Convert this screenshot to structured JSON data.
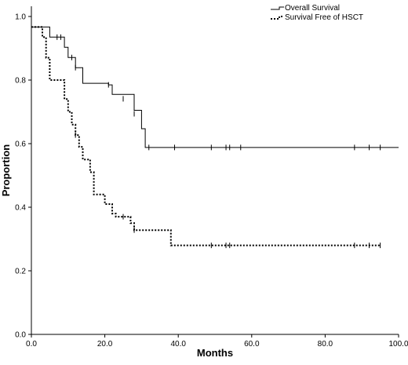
{
  "chart_data": {
    "type": "line",
    "subtype": "kaplan-meier step",
    "xlabel": "Months",
    "ylabel": "Proportion",
    "xlim": [
      0,
      100
    ],
    "ylim": [
      0,
      1.0
    ],
    "x_ticks": [
      "0.0",
      "20.0",
      "40.0",
      "60.0",
      "80.0",
      "100.0"
    ],
    "y_ticks": [
      "0.0",
      "0.2",
      "0.4",
      "0.6",
      "0.8",
      "1.0"
    ],
    "grid": false,
    "legend_position": "top-right",
    "series": [
      {
        "name": "Overall Survival",
        "line_style": "solid",
        "color": "#000000",
        "steps": [
          [
            0,
            0.967
          ],
          [
            5,
            0.935
          ],
          [
            9,
            0.903
          ],
          [
            10,
            0.871
          ],
          [
            12,
            0.839
          ],
          [
            14,
            0.79
          ],
          [
            21,
            0.785
          ],
          [
            22,
            0.755
          ],
          [
            28,
            0.705
          ],
          [
            30,
            0.647
          ],
          [
            31,
            0.588
          ],
          [
            100,
            0.588
          ]
        ],
        "censored": [
          [
            7,
            0.935
          ],
          [
            8,
            0.935
          ],
          [
            11,
            0.871
          ],
          [
            12,
            0.839
          ],
          [
            21,
            0.785
          ],
          [
            25,
            0.741
          ],
          [
            28,
            0.694
          ],
          [
            32,
            0.588
          ],
          [
            39,
            0.588
          ],
          [
            49,
            0.588
          ],
          [
            53,
            0.588
          ],
          [
            54,
            0.588
          ],
          [
            57,
            0.588
          ],
          [
            88,
            0.588
          ],
          [
            92,
            0.588
          ],
          [
            95,
            0.588
          ]
        ]
      },
      {
        "name": "Survival Free of HSCT",
        "line_style": "dotted",
        "color": "#000000",
        "steps": [
          [
            0,
            0.967
          ],
          [
            3,
            0.935
          ],
          [
            4,
            0.87
          ],
          [
            5,
            0.8
          ],
          [
            8,
            0.8
          ],
          [
            9,
            0.74
          ],
          [
            10,
            0.7
          ],
          [
            11,
            0.66
          ],
          [
            12,
            0.627
          ],
          [
            13,
            0.59
          ],
          [
            14,
            0.55
          ],
          [
            16,
            0.51
          ],
          [
            17,
            0.44
          ],
          [
            20,
            0.41
          ],
          [
            22,
            0.38
          ],
          [
            23,
            0.37
          ],
          [
            27,
            0.35
          ],
          [
            28,
            0.328
          ],
          [
            38,
            0.28
          ],
          [
            95,
            0.28
          ]
        ],
        "censored": [
          [
            12,
            0.627
          ],
          [
            25,
            0.37
          ],
          [
            28,
            0.328
          ],
          [
            49,
            0.28
          ],
          [
            53,
            0.28
          ],
          [
            54,
            0.28
          ],
          [
            88,
            0.28
          ],
          [
            92,
            0.28
          ],
          [
            95,
            0.28
          ]
        ]
      }
    ]
  }
}
